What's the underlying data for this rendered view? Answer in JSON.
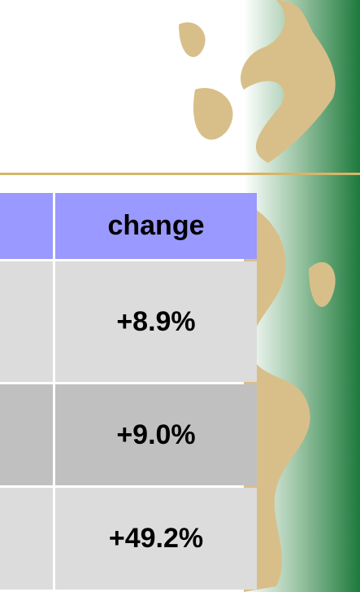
{
  "table": {
    "header": [
      "change"
    ],
    "rows": [
      [
        "+8.9%"
      ],
      [
        "+9.0%"
      ],
      [
        "+49.2%"
      ]
    ]
  }
}
